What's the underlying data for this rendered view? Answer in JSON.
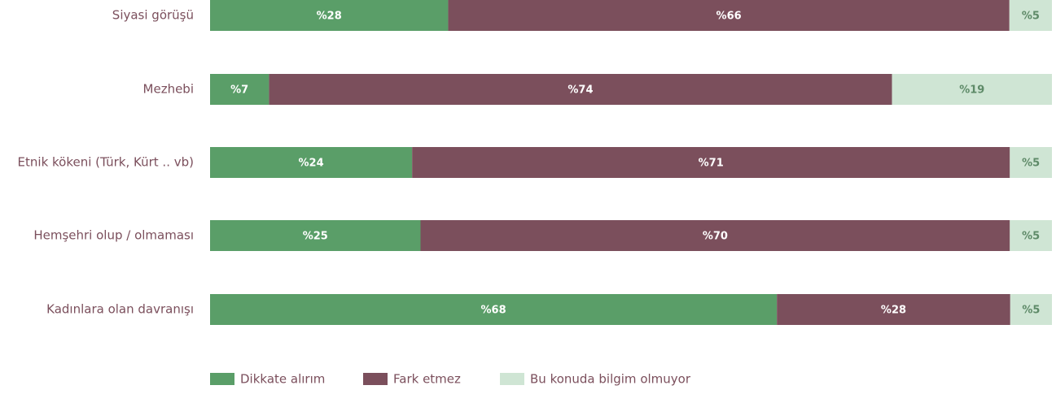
{
  "chart_data": {
    "type": "stacked_bar_horizontal",
    "categories": [
      "Siyasi görüşü",
      "Mezhebi",
      "Etnik kökeni (Türk, Kürt .. vb)",
      "Hemşehri olup / olmaması",
      "Kadınlara olan davranışı"
    ],
    "series": [
      {
        "name": "Dikkate alırım",
        "color": "#5a9e68",
        "values": [
          28,
          7,
          24,
          25,
          68
        ],
        "value_labels": [
          "%28",
          "%7",
          "%24",
          "%25",
          "%68"
        ]
      },
      {
        "name": "Fark etmez",
        "color": "#7b4f5c",
        "values": [
          66,
          74,
          71,
          70,
          28
        ],
        "value_labels": [
          "%66",
          "%74",
          "%71",
          "%70",
          "%28"
        ]
      },
      {
        "name": "Bu konuda bilgim olmuyor",
        "color": "#cfe5d4",
        "values": [
          5,
          19,
          5,
          5,
          5
        ],
        "value_labels": [
          "%5",
          "%19",
          "%5",
          "%5",
          "%5"
        ]
      }
    ]
  }
}
